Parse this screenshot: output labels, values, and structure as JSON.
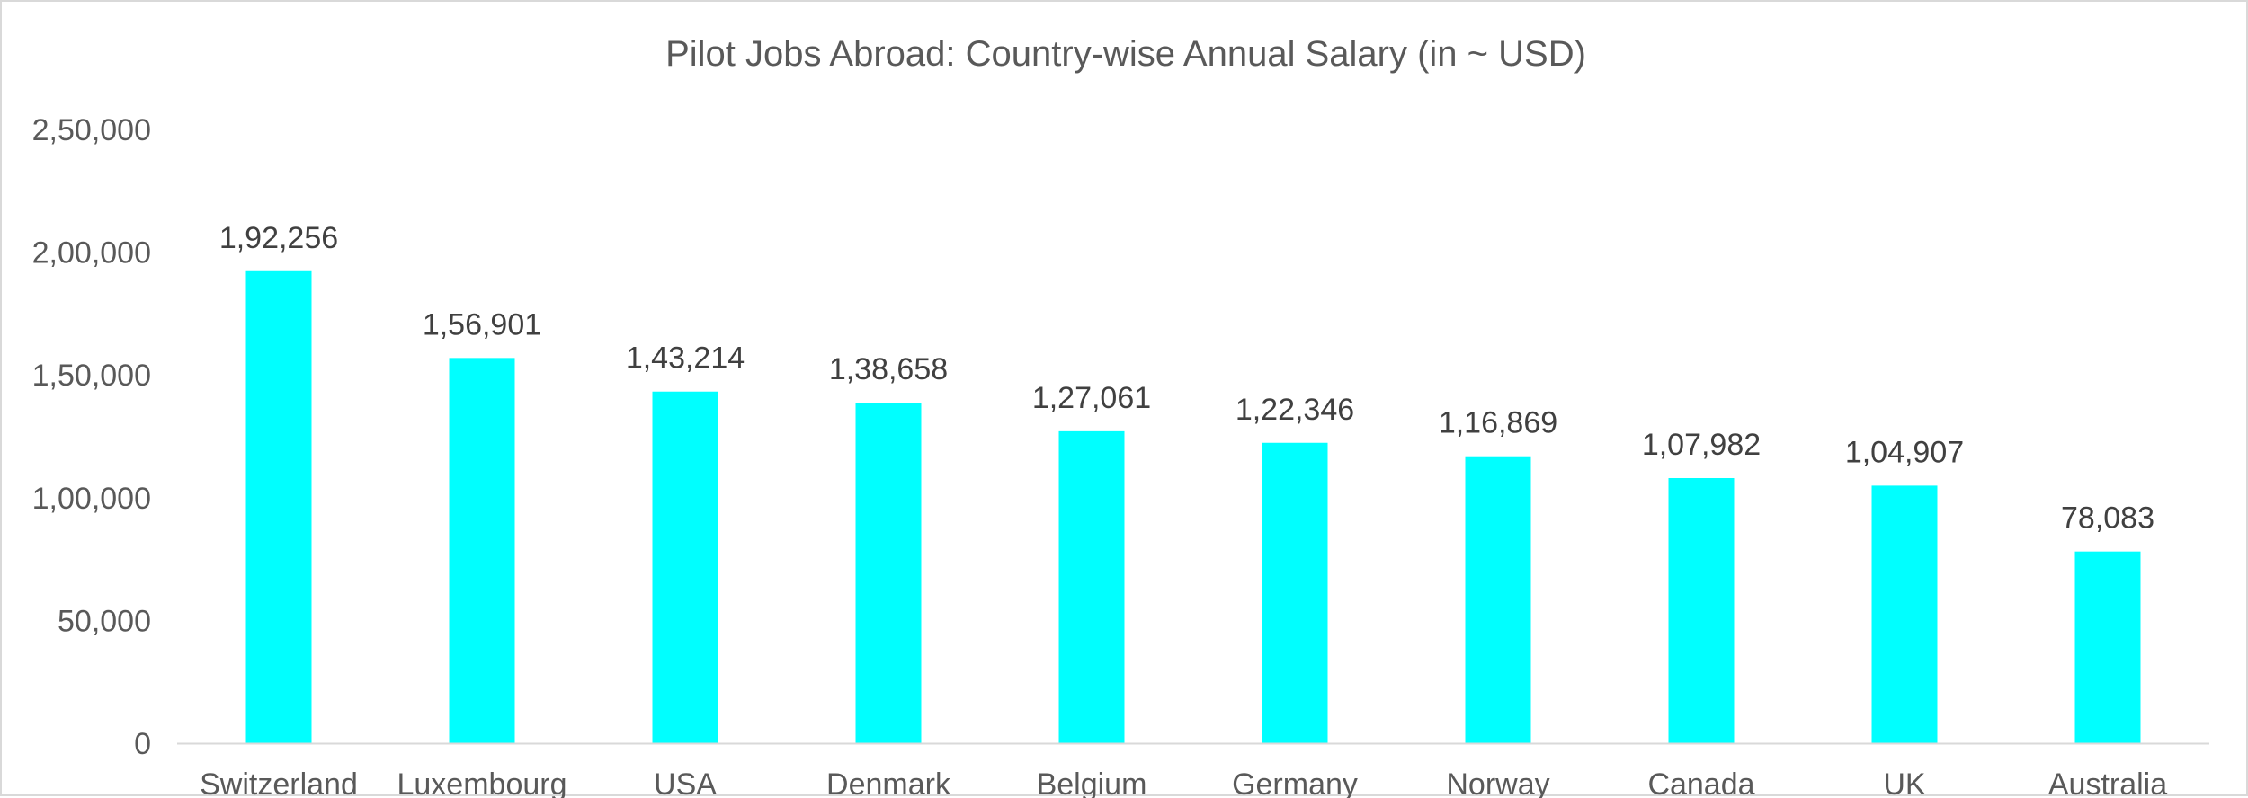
{
  "chart_data": {
    "type": "bar",
    "title": "Pilot Jobs Abroad: Country-wise Annual Salary (in ~ USD)",
    "categories": [
      "Switzerland",
      "Luxembourg",
      "USA",
      "Denmark",
      "Belgium",
      "Germany",
      "Norway",
      "Canada",
      "UK",
      "Australia"
    ],
    "values": [
      192256,
      156901,
      143214,
      138658,
      127061,
      122346,
      116869,
      107982,
      104907,
      78083
    ],
    "data_labels": [
      "1,92,256",
      "1,56,901",
      "1,43,214",
      "1,38,658",
      "1,27,061",
      "1,22,346",
      "1,16,869",
      "1,07,982",
      "1,04,907",
      "78,083"
    ],
    "yticks": [
      0,
      50000,
      100000,
      150000,
      200000,
      250000
    ],
    "ytick_labels": [
      "0",
      "50,000",
      "1,00,000",
      "1,50,000",
      "2,00,000",
      "2,50,000"
    ],
    "ylim": [
      0,
      250000
    ],
    "xlabel": "",
    "ylabel": "",
    "grid": false,
    "legend": "none",
    "bar_color": "#00FFFF",
    "axis_color": "#D9D9D9"
  }
}
